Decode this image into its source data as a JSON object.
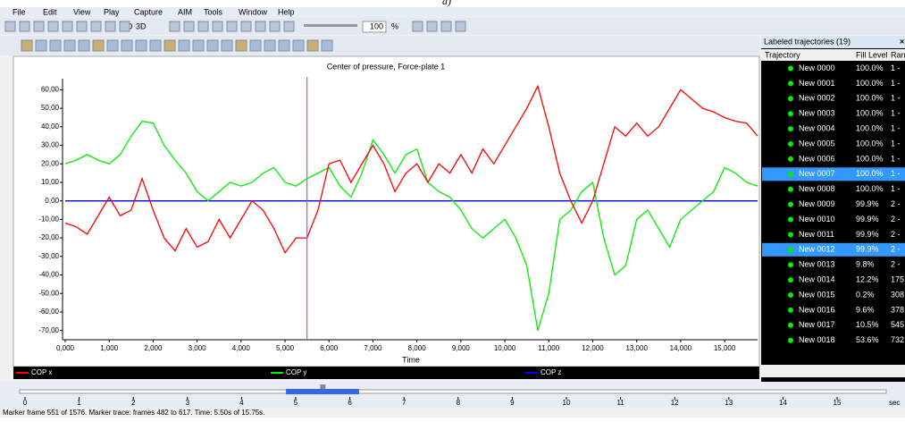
{
  "caption": "a)",
  "menu": [
    "File",
    "Edit",
    "View",
    "Play",
    "Capture",
    "AIM",
    "Tools",
    "Window",
    "Help"
  ],
  "toolbar": {
    "mode_2d": "2D",
    "mode_3d": "3D",
    "speed": "100",
    "speed_unit": "%",
    "force": "F"
  },
  "chart_data": {
    "type": "line",
    "title": "Center of pressure, Force-plate 1",
    "xlabel": "Time",
    "x": [
      0,
      0.25,
      0.5,
      0.75,
      1,
      1.25,
      1.5,
      1.75,
      2,
      2.25,
      2.5,
      2.75,
      3,
      3.25,
      3.5,
      3.75,
      4,
      4.25,
      4.5,
      4.75,
      5,
      5.25,
      5.5,
      5.75,
      6,
      6.25,
      6.5,
      6.75,
      7,
      7.25,
      7.5,
      7.75,
      8,
      8.25,
      8.5,
      8.75,
      9,
      9.25,
      9.5,
      9.75,
      10,
      10.25,
      10.5,
      10.75,
      11,
      11.25,
      11.5,
      11.75,
      12,
      12.25,
      12.5,
      12.75,
      13,
      13.25,
      13.5,
      13.75,
      14,
      14.25,
      14.5,
      14.75,
      15,
      15.25,
      15.5,
      15.75
    ],
    "series": [
      {
        "name": "COP x",
        "color": "#ff0000",
        "values": [
          -12,
          -14,
          -18,
          -8,
          2,
          -8,
          -5,
          12,
          -5,
          -20,
          -27,
          -15,
          -25,
          -22,
          -10,
          -20,
          -10,
          0,
          -5,
          -15,
          -28,
          -20,
          -20,
          -5,
          20,
          22,
          10,
          20,
          30,
          20,
          5,
          15,
          20,
          10,
          20,
          15,
          25,
          15,
          28,
          20,
          30,
          40,
          50,
          62,
          40,
          15,
          0,
          -12,
          0,
          20,
          40,
          35,
          42,
          35,
          40,
          50,
          60,
          55,
          50,
          48,
          45,
          43,
          42,
          35
        ]
      },
      {
        "name": "COP y",
        "color": "#00ee00",
        "values": [
          20,
          22,
          25,
          22,
          20,
          25,
          35,
          43,
          42,
          30,
          22,
          15,
          5,
          0,
          5,
          10,
          8,
          10,
          15,
          18,
          10,
          8,
          12,
          15,
          18,
          8,
          2,
          15,
          33,
          25,
          15,
          25,
          28,
          10,
          5,
          2,
          -5,
          -15,
          -20,
          -15,
          -10,
          -20,
          -35,
          -70,
          -50,
          -10,
          -5,
          5,
          10,
          -20,
          -40,
          -35,
          -10,
          -5,
          -15,
          -25,
          -10,
          -5,
          0,
          5,
          18,
          15,
          10,
          8
        ]
      },
      {
        "name": "COP z",
        "color": "#0000ff",
        "values": [
          0,
          0,
          0,
          0,
          0,
          0,
          0,
          0,
          0,
          0,
          0,
          0,
          0,
          0,
          0,
          0,
          0,
          0,
          0,
          0,
          0,
          0,
          0,
          0,
          0,
          0,
          0,
          0,
          0,
          0,
          0,
          0,
          0,
          0,
          0,
          0,
          0,
          0,
          0,
          0,
          0,
          0,
          0,
          0,
          0,
          0,
          0,
          0,
          0,
          0,
          0,
          0,
          0,
          0,
          0,
          0,
          0,
          0,
          0,
          0,
          0,
          0,
          0,
          0
        ]
      }
    ],
    "xlim": [
      0,
      15.75
    ],
    "ylim": [
      -75,
      66
    ],
    "xticks": [
      {
        "value": 0,
        "label": "0,000"
      },
      {
        "value": 1,
        "label": "1,000"
      },
      {
        "value": 2,
        "label": "2,000"
      },
      {
        "value": 3,
        "label": "3,000"
      },
      {
        "value": 4,
        "label": "4,000"
      },
      {
        "value": 5,
        "label": "5,000"
      },
      {
        "value": 6,
        "label": "6,000"
      },
      {
        "value": 7,
        "label": "7,000"
      },
      {
        "value": 8,
        "label": "8,000"
      },
      {
        "value": 9,
        "label": "9,000"
      },
      {
        "value": 10,
        "label": "10,000"
      },
      {
        "value": 11,
        "label": "11,000"
      },
      {
        "value": 12,
        "label": "12,000"
      },
      {
        "value": 13,
        "label": "13,000"
      },
      {
        "value": 14,
        "label": "14,000"
      },
      {
        "value": 15,
        "label": "15,000"
      }
    ],
    "yticks": [
      {
        "value": 60,
        "label": "60,00"
      },
      {
        "value": 50,
        "label": "50,00"
      },
      {
        "value": 40,
        "label": "40,00"
      },
      {
        "value": 30,
        "label": "30,00"
      },
      {
        "value": 20,
        "label": "20,00"
      },
      {
        "value": 10,
        "label": "10,00"
      },
      {
        "value": 0,
        "label": "0,00"
      },
      {
        "value": -10,
        "label": "-10,00"
      },
      {
        "value": -20,
        "label": "-20,00"
      },
      {
        "value": -30,
        "label": "-30,00"
      },
      {
        "value": -40,
        "label": "-40,00"
      },
      {
        "value": -50,
        "label": "-50,00"
      },
      {
        "value": -60,
        "label": "-60,00"
      },
      {
        "value": -70,
        "label": "-70,00"
      }
    ],
    "cursor_x": 5.5,
    "cursor_color": "#cc44ee"
  },
  "panel": {
    "title": "Labeled trajectories (19)",
    "columns": [
      "Trajectory",
      "Fill Level",
      "Ran"
    ],
    "selected_rows": [
      7,
      12
    ],
    "rows": [
      [
        "New 0000",
        "100.0%",
        "1 -"
      ],
      [
        "New 0001",
        "100.0%",
        "1 -"
      ],
      [
        "New 0002",
        "100.0%",
        "1 -"
      ],
      [
        "New 0003",
        "100.0%",
        "1 -"
      ],
      [
        "New 0004",
        "100.0%",
        "1 -"
      ],
      [
        "New 0005",
        "100.0%",
        "1 -"
      ],
      [
        "New 0006",
        "100.0%",
        "1 -"
      ],
      [
        "New 0007",
        "100.0%",
        "1 -"
      ],
      [
        "New 0008",
        "100.0%",
        "1 -"
      ],
      [
        "New 0009",
        "99.9%",
        "2 -"
      ],
      [
        "New 0010",
        "99.9%",
        "2 -"
      ],
      [
        "New 0011",
        "99.9%",
        "2 -"
      ],
      [
        "New 0012",
        "99.9%",
        "2 -"
      ],
      [
        "New 0013",
        "9.8%",
        "2 -"
      ],
      [
        "New 0014",
        "12.2%",
        "175"
      ],
      [
        "New 0015",
        "0.2%",
        "308"
      ],
      [
        "New 0016",
        "9.6%",
        "378"
      ],
      [
        "New 0017",
        "10.5%",
        "545"
      ],
      [
        "New 0018",
        "53.6%",
        "732"
      ]
    ]
  },
  "timeline": {
    "range": [
      0,
      15.75
    ],
    "ticks": [
      0,
      1,
      2,
      3,
      4,
      5,
      6,
      7,
      8,
      9,
      10,
      11,
      12,
      13,
      14,
      15
    ],
    "unit": "sec",
    "trace": [
      4.82,
      6.17
    ],
    "current": 5.5
  },
  "status": "Marker frame 551 of 1576. Marker trace: frames 482 to 617. Time: 5.50s of 15.75s."
}
